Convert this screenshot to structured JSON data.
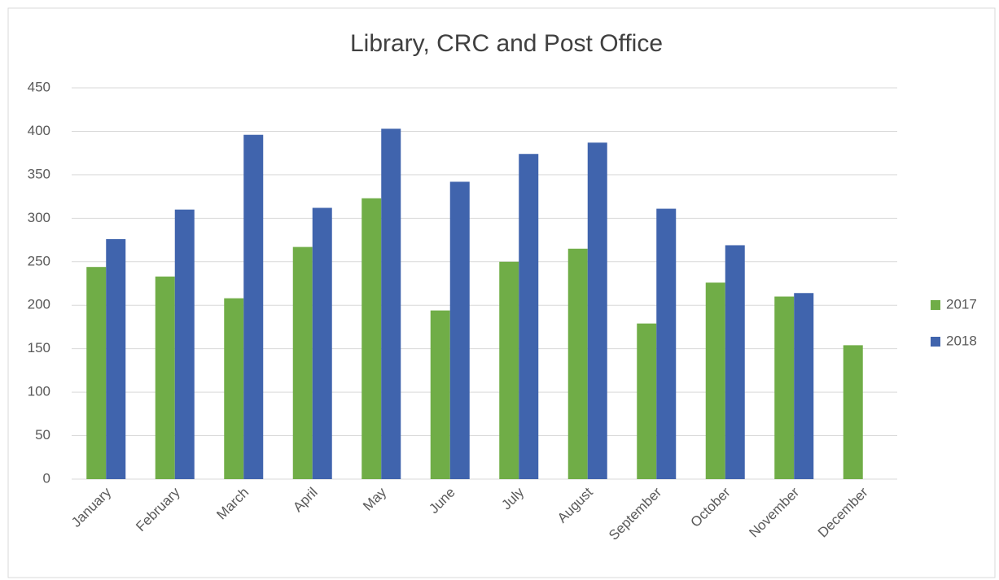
{
  "chart_data": {
    "type": "bar",
    "title": "Library, CRC and Post Office",
    "categories": [
      "January",
      "February",
      "March",
      "April",
      "May",
      "June",
      "July",
      "August",
      "September",
      "October",
      "November",
      "December"
    ],
    "series": [
      {
        "name": "2017",
        "color": "#70ad47",
        "values": [
          244,
          233,
          208,
          267,
          323,
          194,
          250,
          265,
          179,
          226,
          210,
          154
        ]
      },
      {
        "name": "2018",
        "color": "#4064ad",
        "values": [
          276,
          310,
          396,
          312,
          403,
          342,
          374,
          387,
          311,
          269,
          214,
          null
        ]
      }
    ],
    "ylim": [
      0,
      450
    ],
    "yticks": [
      0,
      50,
      100,
      150,
      200,
      250,
      300,
      350,
      400,
      450
    ],
    "grid": true,
    "legend": "right"
  }
}
